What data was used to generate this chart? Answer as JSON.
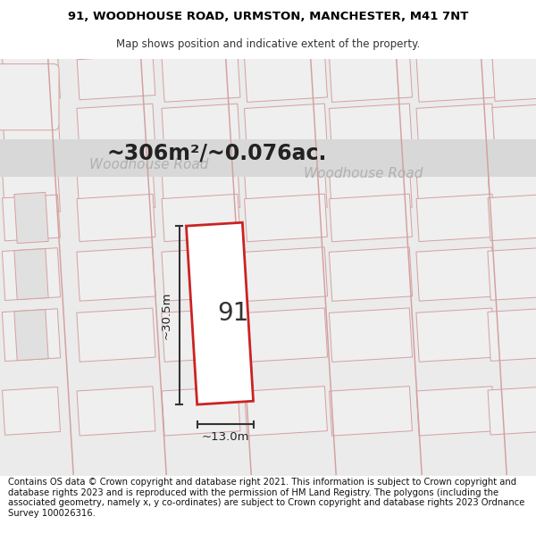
{
  "title_line1": "91, WOODHOUSE ROAD, URMSTON, MANCHESTER, M41 7NT",
  "title_line2": "Map shows position and indicative extent of the property.",
  "footer_text": "Contains OS data © Crown copyright and database right 2021. This information is subject to Crown copyright and database rights 2023 and is reproduced with the permission of HM Land Registry. The polygons (including the associated geometry, namely x, y co-ordinates) are subject to Crown copyright and database rights 2023 Ordnance Survey 100026316.",
  "area_label": "~306m²/~0.076ac.",
  "property_number": "91",
  "dim_width": "~13.0m",
  "dim_height": "~30.5m",
  "road_label_left": "Woodhouse Road",
  "road_label_right": "Woodhouse Road",
  "bg_color": "#ebebeb",
  "plot_fill_light": "#f0f0f0",
  "plot_fill_white": "#ffffff",
  "pink_edge": "#d4a0a0",
  "red_edge": "#cc2222",
  "road_fill": "#e0e0e0",
  "dim_color": "#333333",
  "title_fontsize": 9.5,
  "subtitle_fontsize": 8.5,
  "footer_fontsize": 7.2,
  "area_fontsize": 17,
  "num_fontsize": 20,
  "road_label_fontsize": 11,
  "dim_label_fontsize": 9.5
}
